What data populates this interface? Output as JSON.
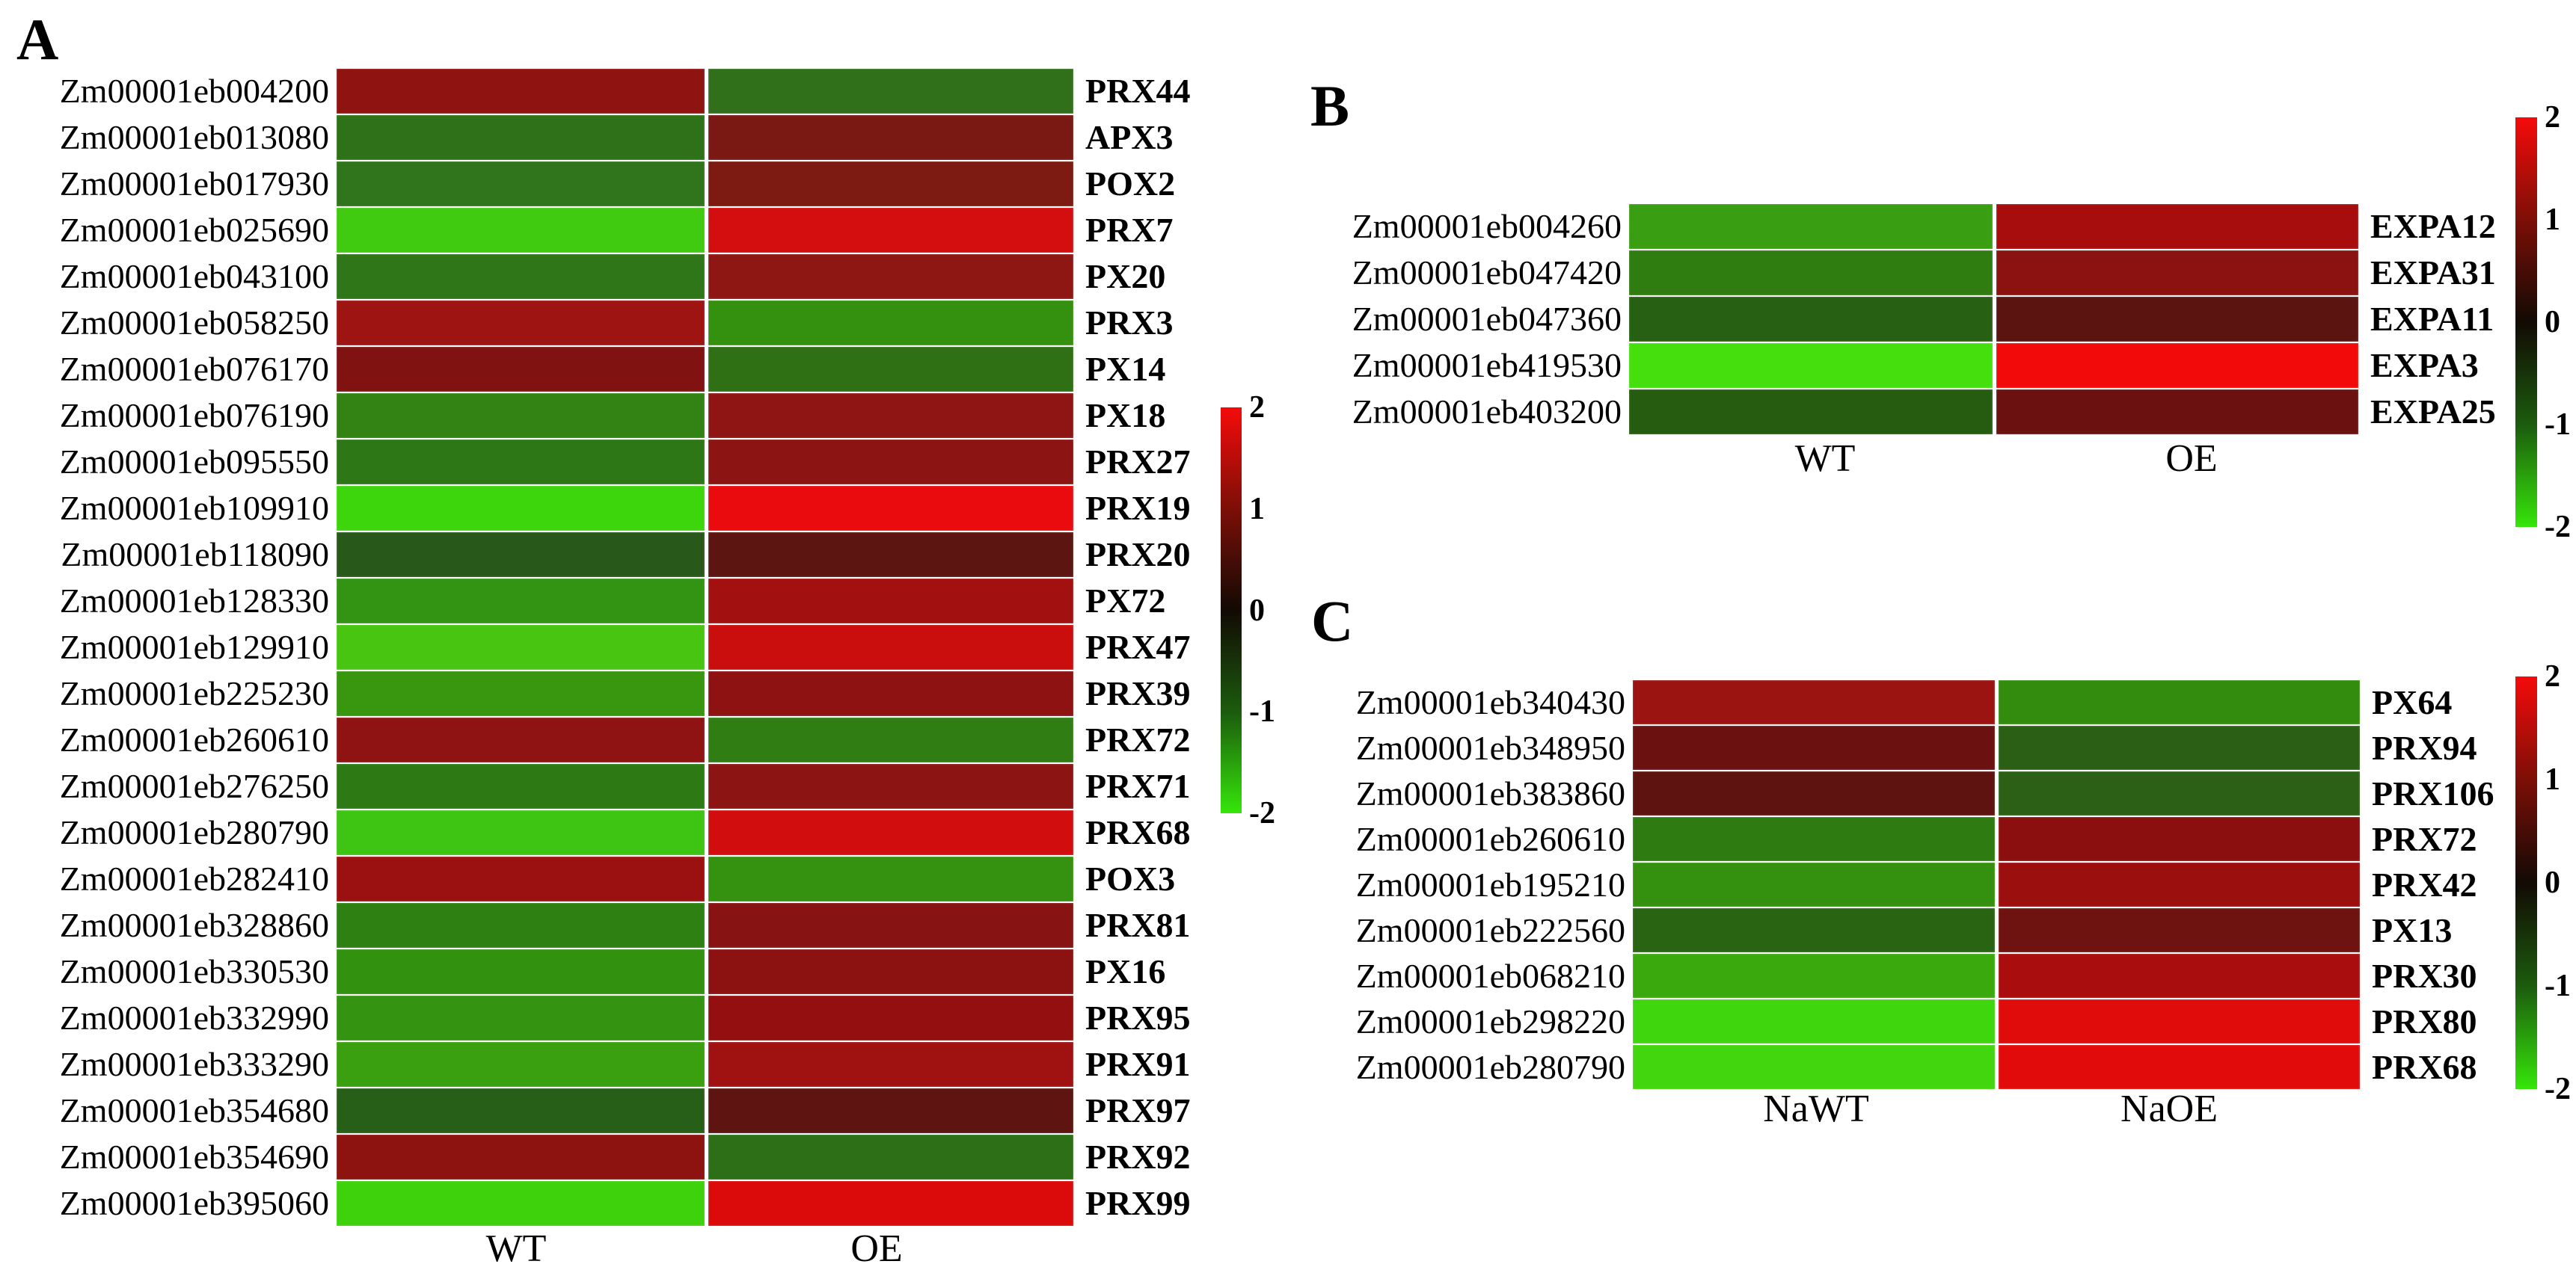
{
  "figure": {
    "background": "#ffffff",
    "colorbar": {
      "ticks": [
        "2",
        "1",
        "0",
        "-1",
        "-2"
      ],
      "top_color": "#f50b0b",
      "mid_color": "#120a04",
      "bottom_color": "#36e60a"
    }
  },
  "chart_data": [
    {
      "type": "heatmap",
      "panel": "A",
      "columns": [
        "WT",
        "OE"
      ],
      "scale": {
        "min": -2,
        "max": 2,
        "ticks": [
          2,
          1,
          0,
          -1,
          -2
        ]
      },
      "legend_position": "right",
      "rows": [
        {
          "gene_id": "Zm00001eb004200",
          "gene_name": "PRX44",
          "values": [
            1.1,
            -0.9
          ],
          "colors": [
            "#8f1411",
            "#30701b"
          ]
        },
        {
          "gene_id": "Zm00001eb013080",
          "gene_name": "APX3",
          "values": [
            -0.9,
            0.8
          ],
          "colors": [
            "#2e7118",
            "#7a1814"
          ]
        },
        {
          "gene_id": "Zm00001eb017930",
          "gene_name": "POX2",
          "values": [
            -0.9,
            0.8
          ],
          "colors": [
            "#30741c",
            "#7d1b12"
          ]
        },
        {
          "gene_id": "Zm00001eb025690",
          "gene_name": "PRX7",
          "values": [
            -1.6,
            1.7
          ],
          "colors": [
            "#40cb10",
            "#d40e0f"
          ]
        },
        {
          "gene_id": "Zm00001eb043100",
          "gene_name": "PX20",
          "values": [
            -0.9,
            1.1
          ],
          "colors": [
            "#2e7617",
            "#8f1713"
          ]
        },
        {
          "gene_id": "Zm00001eb058250",
          "gene_name": "PRX3",
          "values": [
            1.2,
            -1.1
          ],
          "colors": [
            "#9e1412",
            "#349110"
          ]
        },
        {
          "gene_id": "Zm00001eb076170",
          "gene_name": "PX14",
          "values": [
            1.0,
            -0.9
          ],
          "colors": [
            "#801311",
            "#2f7015"
          ]
        },
        {
          "gene_id": "Zm00001eb076190",
          "gene_name": "PX18",
          "values": [
            -1.0,
            1.1
          ],
          "colors": [
            "#338214",
            "#8f1514"
          ]
        },
        {
          "gene_id": "Zm00001eb095550",
          "gene_name": "PRX27",
          "values": [
            -0.9,
            1.0
          ],
          "colors": [
            "#2e7717",
            "#8c1412"
          ]
        },
        {
          "gene_id": "Zm00001eb109910",
          "gene_name": "PRX19",
          "values": [
            -1.7,
            1.9
          ],
          "colors": [
            "#3dd60d",
            "#ea0b0e"
          ]
        },
        {
          "gene_id": "Zm00001eb118090",
          "gene_name": "PRX20",
          "values": [
            -0.7,
            0.7
          ],
          "colors": [
            "#28591b",
            "#5c1511"
          ]
        },
        {
          "gene_id": "Zm00001eb128330",
          "gene_name": "PX72",
          "values": [
            -1.2,
            1.3
          ],
          "colors": [
            "#339312",
            "#a31010"
          ]
        },
        {
          "gene_id": "Zm00001eb129910",
          "gene_name": "PRX47",
          "values": [
            -1.6,
            1.6
          ],
          "colors": [
            "#47c511",
            "#ca0e0e"
          ]
        },
        {
          "gene_id": "Zm00001eb225230",
          "gene_name": "PRX39",
          "values": [
            -1.2,
            1.1
          ],
          "colors": [
            "#38960f",
            "#8e1211"
          ]
        },
        {
          "gene_id": "Zm00001eb260610",
          "gene_name": "PRX72",
          "values": [
            1.1,
            -1.0
          ],
          "colors": [
            "#8f1312",
            "#2f7d13"
          ]
        },
        {
          "gene_id": "Zm00001eb276250",
          "gene_name": "PRX71",
          "values": [
            -0.9,
            1.1
          ],
          "colors": [
            "#2d7a15",
            "#8c1413"
          ]
        },
        {
          "gene_id": "Zm00001eb280790",
          "gene_name": "PRX68",
          "values": [
            -1.5,
            1.7
          ],
          "colors": [
            "#3ec412",
            "#d20d0d"
          ]
        },
        {
          "gene_id": "Zm00001eb282410",
          "gene_name": "POX3",
          "values": [
            1.1,
            -1.1
          ],
          "colors": [
            "#9b1111",
            "#359110"
          ]
        },
        {
          "gene_id": "Zm00001eb328860",
          "gene_name": "PRX81",
          "values": [
            -1.0,
            1.0
          ],
          "colors": [
            "#2e8013",
            "#871412"
          ]
        },
        {
          "gene_id": "Zm00001eb330530",
          "gene_name": "PX16",
          "values": [
            -1.1,
            1.1
          ],
          "colors": [
            "#339110",
            "#8c1211"
          ]
        },
        {
          "gene_id": "Zm00001eb332990",
          "gene_name": "PRX95",
          "values": [
            -1.1,
            1.2
          ],
          "colors": [
            "#349310",
            "#941010"
          ]
        },
        {
          "gene_id": "Zm00001eb333290",
          "gene_name": "PRX91",
          "values": [
            -1.2,
            1.3
          ],
          "colors": [
            "#3aa00f",
            "#a01111"
          ]
        },
        {
          "gene_id": "Zm00001eb354680",
          "gene_name": "PRX97",
          "values": [
            -0.7,
            0.7
          ],
          "colors": [
            "#275f19",
            "#5e1411"
          ]
        },
        {
          "gene_id": "Zm00001eb354690",
          "gene_name": "PRX92",
          "values": [
            1.0,
            -0.9
          ],
          "colors": [
            "#8c1310",
            "#2c6f17"
          ]
        },
        {
          "gene_id": "Zm00001eb395060",
          "gene_name": "PRX99",
          "values": [
            -1.7,
            1.8
          ],
          "colors": [
            "#3ed20c",
            "#db0b0b"
          ]
        }
      ]
    },
    {
      "type": "heatmap",
      "panel": "B",
      "columns": [
        "WT",
        "OE"
      ],
      "scale": {
        "min": -2,
        "max": 2,
        "ticks": [
          2,
          1,
          0,
          -1,
          -2
        ]
      },
      "legend_position": "right",
      "rows": [
        {
          "gene_id": "Zm00001eb004260",
          "gene_name": "EXPA12",
          "values": [
            -1.3,
            1.3
          ],
          "colors": [
            "#3a9e12",
            "#a80d0d"
          ]
        },
        {
          "gene_id": "Zm00001eb047420",
          "gene_name": "EXPA31",
          "values": [
            -1.0,
            1.1
          ],
          "colors": [
            "#2f7d11",
            "#8c1111"
          ]
        },
        {
          "gene_id": "Zm00001eb047360",
          "gene_name": "EXPA11",
          "values": [
            -0.7,
            0.7
          ],
          "colors": [
            "#275f13",
            "#5c1410"
          ]
        },
        {
          "gene_id": "Zm00001eb419530",
          "gene_name": "EXPA3",
          "values": [
            -1.8,
            1.9
          ],
          "colors": [
            "#44df0d",
            "#f20a0a"
          ]
        },
        {
          "gene_id": "Zm00001eb403200",
          "gene_name": "EXPA25",
          "values": [
            -0.7,
            0.9
          ],
          "colors": [
            "#255c10",
            "#6b1110"
          ]
        }
      ]
    },
    {
      "type": "heatmap",
      "panel": "C",
      "columns": [
        "NaWT",
        "NaOE"
      ],
      "scale": {
        "min": -2,
        "max": 2,
        "ticks": [
          2,
          1,
          0,
          -1,
          -2
        ]
      },
      "legend_position": "right",
      "rows": [
        {
          "gene_id": "Zm00001eb340430",
          "gene_name": "PX64",
          "values": [
            1.2,
            -1.1
          ],
          "colors": [
            "#9c1412",
            "#338c0e"
          ]
        },
        {
          "gene_id": "Zm00001eb348950",
          "gene_name": "PRX94",
          "values": [
            0.9,
            -0.8
          ],
          "colors": [
            "#6b1211",
            "#2a5f15"
          ]
        },
        {
          "gene_id": "Zm00001eb383860",
          "gene_name": "PRX106",
          "values": [
            0.7,
            -0.8
          ],
          "colors": [
            "#5f1310",
            "#2c6016"
          ]
        },
        {
          "gene_id": "Zm00001eb260610",
          "gene_name": "PRX72",
          "values": [
            -1.0,
            1.1
          ],
          "colors": [
            "#2e7c11",
            "#8c0f0f"
          ]
        },
        {
          "gene_id": "Zm00001eb195210",
          "gene_name": "PRX42",
          "values": [
            -1.2,
            1.3
          ],
          "colors": [
            "#34910f",
            "#9c0f0f"
          ]
        },
        {
          "gene_id": "Zm00001eb222560",
          "gene_name": "PX13",
          "values": [
            -0.8,
            0.9
          ],
          "colors": [
            "#286412",
            "#6e1310"
          ]
        },
        {
          "gene_id": "Zm00001eb068210",
          "gene_name": "PRX30",
          "values": [
            -1.3,
            1.4
          ],
          "colors": [
            "#3aa90e",
            "#aa0d0d"
          ]
        },
        {
          "gene_id": "Zm00001eb298220",
          "gene_name": "PRX80",
          "values": [
            -1.7,
            1.8
          ],
          "colors": [
            "#3fd60d",
            "#e00b0b"
          ]
        },
        {
          "gene_id": "Zm00001eb280790",
          "gene_name": "PRX68",
          "values": [
            -1.7,
            1.8
          ],
          "colors": [
            "#42d60e",
            "#e20b0b"
          ]
        }
      ]
    }
  ]
}
